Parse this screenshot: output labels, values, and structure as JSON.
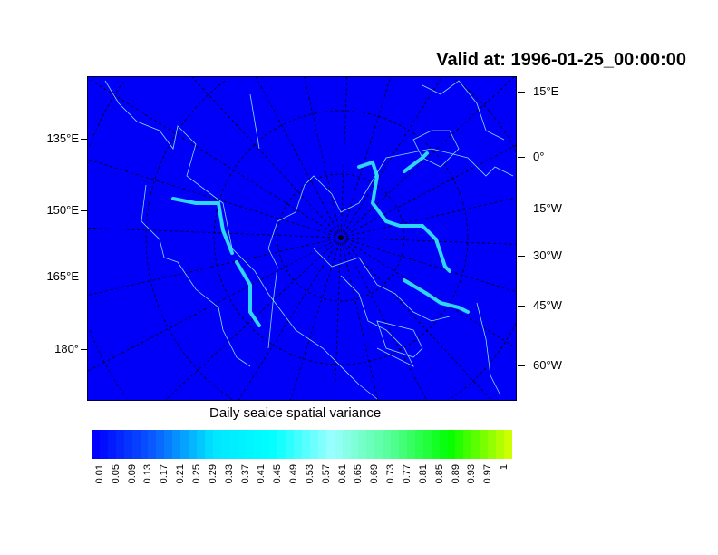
{
  "title": "Valid at: 1996-01-25_00:00:00",
  "map": {
    "projection": "polar stereographic (north)",
    "fill_color": "#0000f8",
    "coastline_color": "#7fe0ff",
    "left_labels": [
      {
        "text": "135°E",
        "row": 0
      },
      {
        "text": "150°E",
        "row": 1
      },
      {
        "text": "165°E",
        "row": 2
      },
      {
        "text": "180°",
        "row": 3
      }
    ],
    "right_labels": [
      {
        "text": "15°E"
      },
      {
        "text": "0°"
      },
      {
        "text": "15°W"
      },
      {
        "text": "30°W"
      },
      {
        "text": "45°W"
      },
      {
        "text": "60°W"
      }
    ]
  },
  "colorbar": {
    "title": "Daily seaice spatial variance",
    "labels": [
      "0.01",
      "0.05",
      "0.09",
      "0.13",
      "0.17",
      "0.21",
      "0.25",
      "0.29",
      "0.33",
      "0.37",
      "0.41",
      "0.45",
      "0.49",
      "0.53",
      "0.57",
      "0.61",
      "0.65",
      "0.69",
      "0.73",
      "0.77",
      "0.81",
      "0.85",
      "0.89",
      "0.93",
      "0.97",
      "1"
    ],
    "color_stops": [
      "#0000ff",
      "#0a5cff",
      "#00e6ff",
      "#00ffff",
      "#99ffff",
      "#55ff99",
      "#00ff00",
      "#ccff00"
    ]
  }
}
